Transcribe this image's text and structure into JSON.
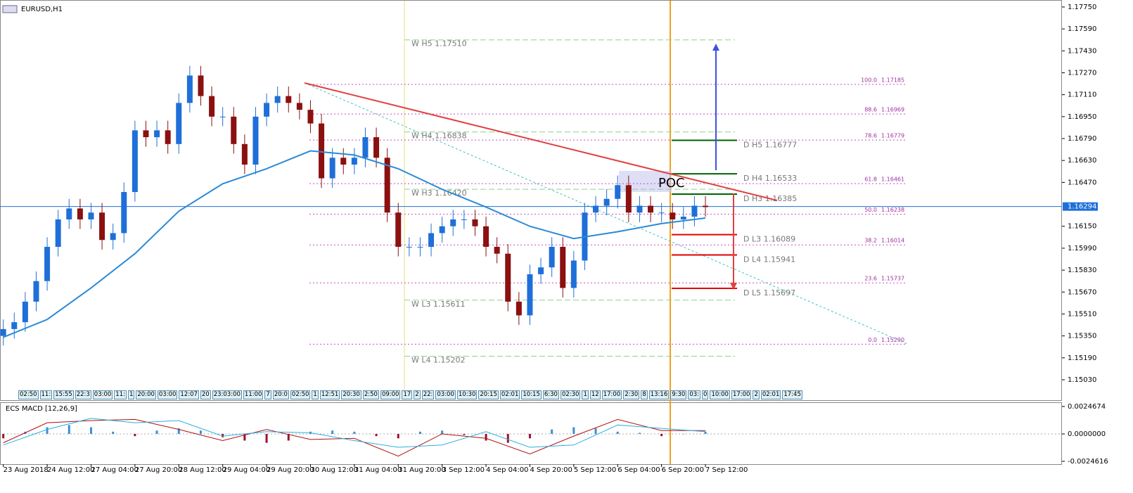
{
  "chart_data": {
    "type": "candlestick",
    "title": "EURUSD,H1",
    "up_color": "#1f6fd8",
    "down_color": "#8b1010",
    "x": [
      0,
      1,
      2,
      3,
      4,
      5,
      6,
      7,
      8,
      9,
      10,
      11,
      12,
      13,
      14,
      15,
      16,
      17,
      18,
      19,
      20,
      21,
      22,
      23,
      24,
      25,
      26,
      27,
      28,
      29,
      30,
      31,
      32,
      33,
      34,
      35,
      36,
      37,
      38,
      39,
      40,
      41,
      42,
      43,
      44,
      45,
      46,
      47,
      48,
      49,
      50,
      51,
      52,
      53,
      54,
      55,
      56,
      57,
      58,
      59,
      60,
      61,
      62,
      63,
      64
    ],
    "open": [
      1.1535,
      1.154,
      1.1545,
      1.156,
      1.1575,
      1.16,
      1.162,
      1.1628,
      1.162,
      1.1625,
      1.1605,
      1.161,
      1.164,
      1.1685,
      1.168,
      1.1685,
      1.1675,
      1.1705,
      1.1725,
      1.171,
      1.1695,
      1.1695,
      1.1675,
      1.166,
      1.1695,
      1.1705,
      1.171,
      1.1705,
      1.17,
      1.169,
      1.165,
      1.1665,
      1.166,
      1.1665,
      1.168,
      1.1665,
      1.1625,
      1.16,
      1.16,
      1.16,
      1.161,
      1.1615,
      1.162,
      1.162,
      1.1615,
      1.16,
      1.1595,
      1.156,
      1.155,
      1.158,
      1.1585,
      1.16,
      1.157,
      1.159,
      1.1625,
      1.163,
      1.1635,
      1.1645,
      1.1625,
      1.163,
      1.1625,
      1.1625,
      1.162,
      1.1622,
      1.163
    ],
    "high": [
      1.1547,
      1.1552,
      1.1567,
      1.1582,
      1.1607,
      1.1627,
      1.1635,
      1.1635,
      1.1632,
      1.1632,
      1.1617,
      1.1647,
      1.1692,
      1.1692,
      1.1692,
      1.1692,
      1.1712,
      1.1732,
      1.1732,
      1.1717,
      1.1702,
      1.1702,
      1.1682,
      1.1702,
      1.1712,
      1.1717,
      1.1717,
      1.1712,
      1.1707,
      1.1697,
      1.1672,
      1.1672,
      1.1672,
      1.1687,
      1.1687,
      1.1672,
      1.1632,
      1.1607,
      1.1607,
      1.1617,
      1.1622,
      1.1627,
      1.1627,
      1.1627,
      1.1622,
      1.1607,
      1.1602,
      1.1567,
      1.1587,
      1.1592,
      1.1607,
      1.1607,
      1.1597,
      1.1632,
      1.1637,
      1.1642,
      1.1652,
      1.1652,
      1.1637,
      1.1637,
      1.1632,
      1.1632,
      1.1629,
      1.1637,
      1.1637
    ],
    "low": [
      1.1528,
      1.1533,
      1.1538,
      1.1553,
      1.1568,
      1.1593,
      1.1613,
      1.1613,
      1.1613,
      1.1598,
      1.1598,
      1.1603,
      1.1633,
      1.1673,
      1.1673,
      1.1668,
      1.1668,
      1.1698,
      1.1703,
      1.1688,
      1.1688,
      1.1668,
      1.1653,
      1.1653,
      1.1688,
      1.1698,
      1.1698,
      1.1693,
      1.1683,
      1.1643,
      1.1643,
      1.1653,
      1.1653,
      1.1658,
      1.1658,
      1.1618,
      1.1593,
      1.1593,
      1.1593,
      1.1593,
      1.1603,
      1.1608,
      1.1613,
      1.1608,
      1.1593,
      1.1588,
      1.1553,
      1.1543,
      1.1543,
      1.1573,
      1.1578,
      1.1563,
      1.1563,
      1.1583,
      1.1618,
      1.1623,
      1.1628,
      1.1618,
      1.1618,
      1.1618,
      1.1618,
      1.1613,
      1.1613,
      1.1615,
      1.1622
    ],
    "close": [
      1.154,
      1.1545,
      1.156,
      1.1575,
      1.16,
      1.162,
      1.1628,
      1.162,
      1.1625,
      1.1605,
      1.161,
      1.164,
      1.1685,
      1.168,
      1.1685,
      1.1675,
      1.1705,
      1.1725,
      1.171,
      1.1695,
      1.1695,
      1.1675,
      1.166,
      1.1695,
      1.1705,
      1.171,
      1.1705,
      1.17,
      1.169,
      1.165,
      1.1665,
      1.166,
      1.1665,
      1.168,
      1.1665,
      1.1625,
      1.16,
      1.16,
      1.16,
      1.161,
      1.1615,
      1.162,
      1.162,
      1.1615,
      1.16,
      1.1595,
      1.156,
      1.155,
      1.158,
      1.1585,
      1.16,
      1.157,
      1.159,
      1.1625,
      1.163,
      1.1635,
      1.1645,
      1.1625,
      1.163,
      1.1625,
      1.1625,
      1.162,
      1.1622,
      1.163,
      1.1629
    ],
    "ma": {
      "color": "#2a8ad8",
      "x": [
        0,
        4,
        8,
        12,
        16,
        20,
        24,
        28,
        32,
        36,
        40,
        44,
        48,
        52,
        56,
        60,
        64
      ],
      "values": [
        1.1534,
        1.1547,
        1.157,
        1.1595,
        1.1626,
        1.1646,
        1.1657,
        1.167,
        1.1667,
        1.1657,
        1.1642,
        1.1629,
        1.1615,
        1.1606,
        1.1611,
        1.1617,
        1.1621
      ]
    },
    "xlim": [
      -0.3,
      96.5
    ],
    "ylim": [
      1.14876,
      1.17801
    ],
    "yticks": [
      {
        "value": 1.1775,
        "label": "1.17750"
      },
      {
        "value": 1.1759,
        "label": "1.17590"
      },
      {
        "value": 1.1743,
        "label": "1.17430"
      },
      {
        "value": 1.1727,
        "label": "1.17270"
      },
      {
        "value": 1.1711,
        "label": "1.17110"
      },
      {
        "value": 1.1695,
        "label": "1.16950"
      },
      {
        "value": 1.1679,
        "label": "1.16790"
      },
      {
        "value": 1.1663,
        "label": "1.16630"
      },
      {
        "value": 1.1647,
        "label": "1.16470"
      },
      {
        "value": 1.1615,
        "label": "1.16150"
      },
      {
        "value": 1.1599,
        "label": "1.15990"
      },
      {
        "value": 1.1583,
        "label": "1.15830"
      },
      {
        "value": 1.1567,
        "label": "1.15670"
      },
      {
        "value": 1.1551,
        "label": "1.15510"
      },
      {
        "value": 1.1535,
        "label": "1.15350"
      },
      {
        "value": 1.1519,
        "label": "1.15190"
      },
      {
        "value": 1.1503,
        "label": "1.15030"
      }
    ],
    "last_price": {
      "value": 1.16294,
      "label": "1.16294",
      "color": "#1f6fd8"
    },
    "xticks": [
      {
        "value": 0,
        "label": "23 Aug 2018"
      },
      {
        "value": 4,
        "label": "24 Aug 12:00"
      },
      {
        "value": 8,
        "label": "27 Aug 04:00"
      },
      {
        "value": 12,
        "label": "27 Aug 20:00"
      },
      {
        "value": 16,
        "label": "28 Aug 12:00"
      },
      {
        "value": 20,
        "label": "29 Aug 04:00"
      },
      {
        "value": 24,
        "label": "29 Aug 20:00"
      },
      {
        "value": 28,
        "label": "30 Aug 12:00"
      },
      {
        "value": 32,
        "label": "31 Aug 04:00"
      },
      {
        "value": 36,
        "label": "31 Aug 20:00"
      },
      {
        "value": 40,
        "label": "3 Sep 12:00"
      },
      {
        "value": 44,
        "label": "4 Sep 04:00"
      },
      {
        "value": 48,
        "label": "4 Sep 20:00"
      },
      {
        "value": 52,
        "label": "5 Sep 12:00"
      },
      {
        "value": 56,
        "label": "6 Sep 04:00"
      },
      {
        "value": 60,
        "label": "6 Sep 20:00"
      },
      {
        "value": 64,
        "label": "7 Sep 12:00"
      }
    ],
    "weekly_pivots": {
      "color": "#8fd08f",
      "levels": [
        {
          "label": "W  H5 1.17510",
          "value": 1.1751
        },
        {
          "label": "W  H4 1.16838",
          "value": 1.16838
        },
        {
          "label": "W  H3 1.16420",
          "value": 1.1642
        },
        {
          "label": "W  L3 1.15611",
          "value": 1.15611
        },
        {
          "label": "W  L4 1.15202",
          "value": 1.15202
        }
      ]
    },
    "daily_pivots": [
      {
        "label": "D  H5 1.16777",
        "value": 1.16777,
        "color": "#006400"
      },
      {
        "label": "D  H4 1.16533",
        "value": 1.16533,
        "color": "#006400"
      },
      {
        "label": "D  H3 1.16385",
        "value": 1.16385,
        "color": "#006400"
      },
      {
        "label": "D  L3 1.16089",
        "value": 1.16089,
        "color": "#e00000"
      },
      {
        "label": "D  L4 1.15941",
        "value": 1.15941,
        "color": "#e00000"
      },
      {
        "label": "D  L5 1.15697",
        "value": 1.15697,
        "color": "#e00000"
      }
    ],
    "fibonacci": {
      "color": "#c050c0",
      "levels": [
        {
          "ratio": "100.0",
          "price": "1.17185",
          "value": 1.17185
        },
        {
          "ratio": "88.6",
          "price": "1.16969",
          "value": 1.16969
        },
        {
          "ratio": "78.6",
          "price": "1.16779",
          "value": 1.16779
        },
        {
          "ratio": "61.8",
          "price": "1.16461",
          "value": 1.16461
        },
        {
          "ratio": "50.0",
          "price": "1.16238",
          "value": 1.16238
        },
        {
          "ratio": "38.2",
          "price": "1.16014",
          "value": 1.16014
        },
        {
          "ratio": "23.6",
          "price": "1.15737",
          "value": 1.15737
        },
        {
          "ratio": "0.0",
          "price": "1.15290",
          "value": 1.1529
        }
      ]
    },
    "poc": "POC",
    "session_labels": [
      "02:50",
      "11:",
      "15:55",
      "22:3",
      "03:00",
      "11:",
      "1",
      "20:00",
      "03:00",
      "12:07",
      "20",
      "23:03:00",
      "11:00",
      "7",
      "20:0",
      "02:50",
      "1",
      "12:51",
      "20:30",
      "2:50",
      "09:00",
      "17",
      "2",
      "22:",
      "03:00",
      "10:30",
      "20:15",
      "02:01",
      "10:15",
      "6:30",
      "02:30",
      "1",
      "12",
      "17:00",
      "2:30",
      "8",
      "13:16",
      "9:30",
      "03:",
      "0",
      "10:00",
      "17:00",
      "2",
      "02:01",
      "17:45"
    ],
    "macd": {
      "title": "ECS MACD [12,26,9]",
      "ylim": [
        -0.00272,
        0.00278
      ],
      "yticks": [
        0.0024674,
        {
          "value": 0,
          "label": "0.0000000"
        },
        -0.0024616
      ],
      "x": [
        0,
        4,
        8,
        12,
        16,
        20,
        24,
        28,
        32,
        36,
        40,
        44,
        48,
        52,
        56,
        60,
        64
      ],
      "main": {
        "color": "#b01010",
        "values": [
          -0.0008,
          0.001,
          0.0012,
          0.0013,
          0.0004,
          -0.0006,
          0.0004,
          -0.0005,
          -0.0004,
          -0.002,
          0.0,
          -0.0004,
          -0.0018,
          -0.0002,
          0.0013,
          0.0003,
          0.0003
        ]
      },
      "signal": {
        "color": "#2ab0e0",
        "values": [
          -0.001,
          0.0004,
          0.0014,
          0.001,
          0.0012,
          -0.0002,
          0.0002,
          0.0001,
          -0.0006,
          -0.0012,
          -0.001,
          0.0002,
          -0.0012,
          -0.001,
          0.0008,
          0.0005,
          0.0002
        ]
      },
      "hist_x": [
        0,
        2,
        4,
        6,
        8,
        10,
        12,
        14,
        16,
        18,
        20,
        22,
        24,
        26,
        28,
        30,
        32,
        34,
        36,
        38,
        40,
        42,
        44,
        46,
        48,
        50,
        52,
        54,
        56,
        58,
        60,
        62,
        64
      ],
      "hist": [
        -0.0004,
        0.0002,
        0.0006,
        0.0008,
        0.0006,
        0.0002,
        -0.0002,
        0.0003,
        0.0005,
        0.0003,
        -0.0003,
        -0.0006,
        -0.0008,
        -0.0006,
        0.0002,
        0.0003,
        0.0002,
        -0.0002,
        -0.0004,
        0.0002,
        0.0003,
        -0.0001,
        -0.0006,
        -0.0008,
        -0.0004,
        0.0004,
        0.0006,
        0.0005,
        0.0002,
        0.0001,
        -0.0002,
        0,
        0.0002
      ],
      "up_color": "#3a8fd8",
      "down_color": "#a01030"
    }
  }
}
